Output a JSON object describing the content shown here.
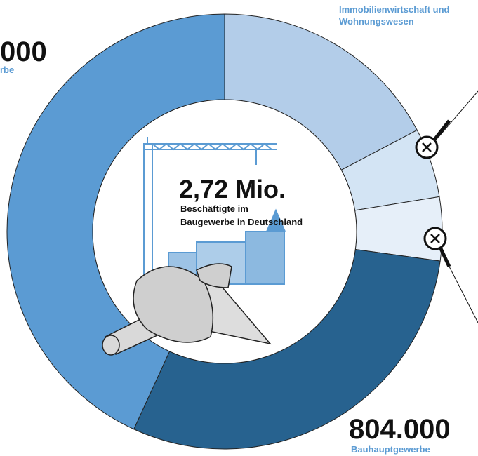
{
  "chart_data": {
    "type": "donut",
    "center_value": "2,72 Mio.",
    "center_lines": [
      "Beschäftigte im",
      "Baugewerbe in Deutschland"
    ],
    "series": [
      {
        "name": "Immobilienwirtschaft und Wohnungswesen",
        "color": "#b3cde9",
        "values": [
          468000
        ]
      },
      {
        "name": null,
        "color": "#d3e4f4",
        "values": [
          140000
        ]
      },
      {
        "name": null,
        "color": "#e6eff9",
        "values": [
          128000
        ]
      },
      {
        "name": "Bauhauptgewerbe",
        "color": "#27628f",
        "values": [
          804000
        ],
        "value_labels": [
          "804.000"
        ]
      },
      {
        "name": "rbe",
        "color": "#5b9bd3",
        "values": [
          1169000
        ],
        "value_labels": [
          "000"
        ]
      }
    ]
  }
}
